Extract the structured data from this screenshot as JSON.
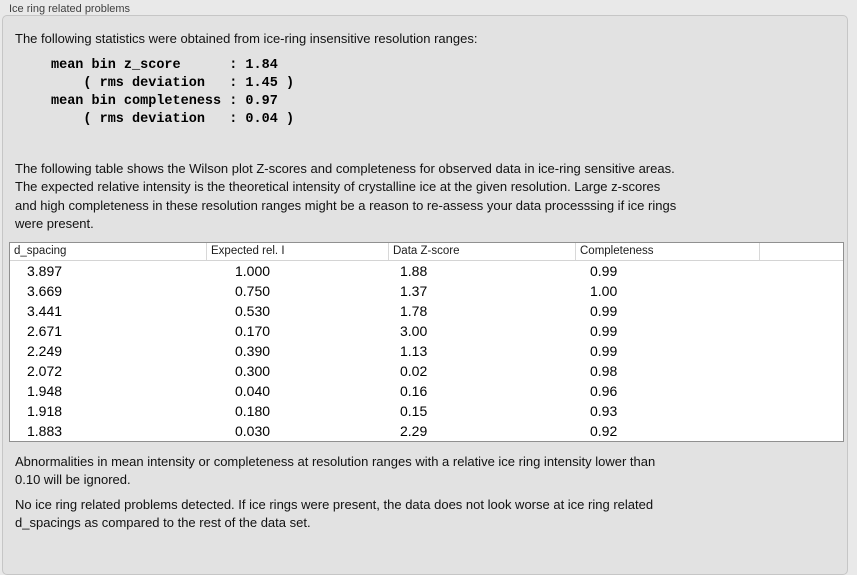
{
  "panel": {
    "title": "Ice ring related problems"
  },
  "stats": {
    "intro": "The following statistics were obtained from ice-ring insensitive resolution ranges:",
    "block": "mean bin z_score      : 1.84\n    ( rms deviation   : 1.45 )\nmean bin completeness : 0.97\n    ( rms deviation   : 0.04 )",
    "mean_bin_z_score": 1.84,
    "z_score_rms_deviation": 1.45,
    "mean_bin_completeness": 0.97,
    "completeness_rms_deviation": 0.04
  },
  "table_section": {
    "description": "The following table shows the Wilson plot Z-scores and completeness for observed data in ice-ring sensitive areas.\nThe expected relative intensity is the theoretical intensity of crystalline ice at the given resolution. Large z-scores\nand high completeness in these resolution ranges might be a reason to re-assess your data processsing if ice rings\nwere present.",
    "columns": [
      "d_spacing",
      "Expected rel. I",
      "Data Z-score",
      "Completeness",
      ""
    ],
    "rows": [
      [
        "3.897",
        "1.000",
        "1.88",
        "0.99"
      ],
      [
        "3.669",
        "0.750",
        "1.37",
        "1.00"
      ],
      [
        "3.441",
        "0.530",
        "1.78",
        "0.99"
      ],
      [
        "2.671",
        "0.170",
        "3.00",
        "0.99"
      ],
      [
        "2.249",
        "0.390",
        "1.13",
        "0.99"
      ],
      [
        "2.072",
        "0.300",
        "0.02",
        "0.98"
      ],
      [
        "1.948",
        "0.040",
        "0.16",
        "0.96"
      ],
      [
        "1.918",
        "0.180",
        "0.15",
        "0.93"
      ],
      [
        "1.883",
        "0.030",
        "2.29",
        "0.92"
      ]
    ]
  },
  "notes": {
    "ignore": "Abnormalities in mean intensity or completeness at resolution ranges with a relative ice ring intensity lower than\n0.10 will be ignored.",
    "conclusion": "No ice ring related problems detected. If ice rings were present, the data does not look worse at ice ring related\nd_spacings as compared to the rest of the data set."
  },
  "colors": {
    "page_background": "#e9e9e9",
    "groupbox_background": "#e2e2e2",
    "groupbox_border": "#c6c6c6",
    "table_background": "#ffffff",
    "table_border": "#909090",
    "header_separator": "#d8d8d8",
    "text": "#111111"
  }
}
